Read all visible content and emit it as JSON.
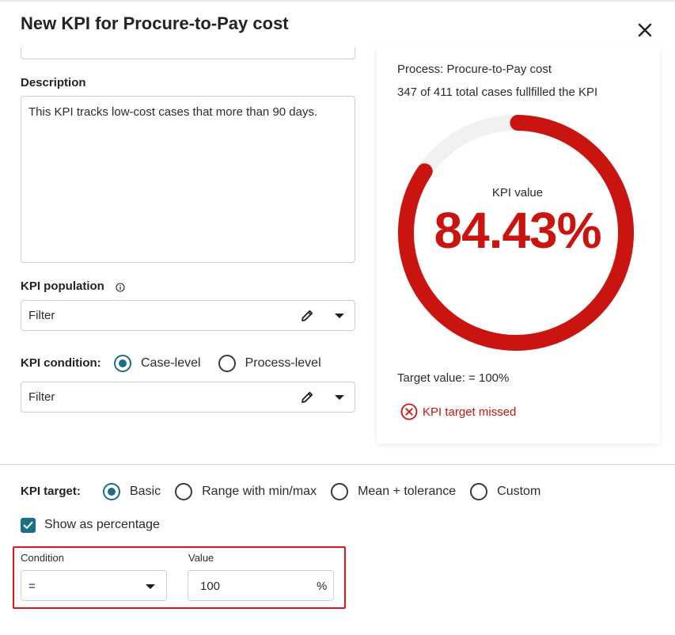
{
  "dialog": {
    "title": "New KPI for Procure-to-Pay cost",
    "close_icon": "close-icon"
  },
  "form": {
    "description_label": "Description",
    "description_value": "This KPI tracks low-cost cases that more than 90 days.",
    "population_label": "KPI population",
    "population_info_icon": "info-icon",
    "population_filter": "Filter",
    "condition_label": "KPI condition:",
    "condition_options": [
      {
        "label": "Case-level",
        "checked": true
      },
      {
        "label": "Process-level",
        "checked": false
      }
    ],
    "condition_filter": "Filter"
  },
  "preview": {
    "process_line": "Process: Procure-to-Pay cost",
    "cases_line": "347 of 411 total cases fullfilled the KPI",
    "gauge_label": "KPI value",
    "gauge_value": "84.43%",
    "gauge_fraction": 0.8443,
    "target_line": "Target value: = 100%",
    "status_text": "KPI target missed",
    "status_icon": "error-circle-icon",
    "accent_color": "#c9140f",
    "track_color": "#f1f1f1"
  },
  "target": {
    "label": "KPI target:",
    "options": [
      {
        "label": "Basic",
        "checked": true
      },
      {
        "label": "Range with min/max",
        "checked": false
      },
      {
        "label": "Mean + tolerance",
        "checked": false
      },
      {
        "label": "Custom",
        "checked": false
      }
    ],
    "show_percentage_label": "Show as percentage",
    "show_percentage_checked": true,
    "condition_label": "Condition",
    "condition_value": "=",
    "value_label": "Value",
    "value_value": "100",
    "value_unit": "%"
  },
  "colors": {
    "primary": "#1b6f86",
    "error": "#c9140f",
    "highlight_border": "#e0161b"
  }
}
